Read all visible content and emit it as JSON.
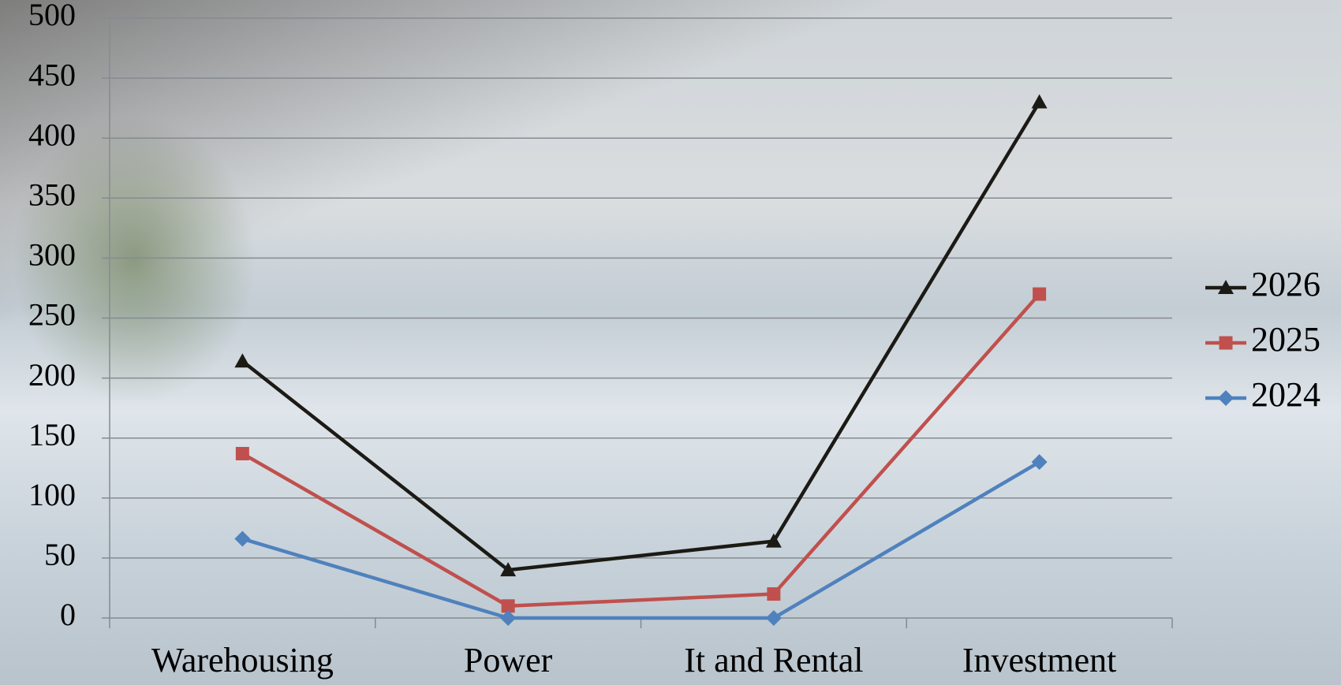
{
  "chart_data": {
    "type": "line",
    "categories": [
      "Warehousing",
      "Power",
      "It and Rental",
      "Investment"
    ],
    "series": [
      {
        "name": "2026",
        "color": "#1c1a14",
        "marker": "triangle",
        "values": [
          214,
          40,
          64,
          430
        ]
      },
      {
        "name": "2025",
        "color": "#c0504d",
        "marker": "square",
        "values": [
          137,
          10,
          20,
          270
        ]
      },
      {
        "name": "2024",
        "color": "#4f81bd",
        "marker": "diamond",
        "values": [
          66,
          0,
          0,
          130
        ]
      }
    ],
    "ylim": [
      0,
      500
    ],
    "yticks": [
      0,
      50,
      100,
      150,
      200,
      250,
      300,
      350,
      400,
      450,
      500
    ],
    "grid": true,
    "legend": "right"
  }
}
